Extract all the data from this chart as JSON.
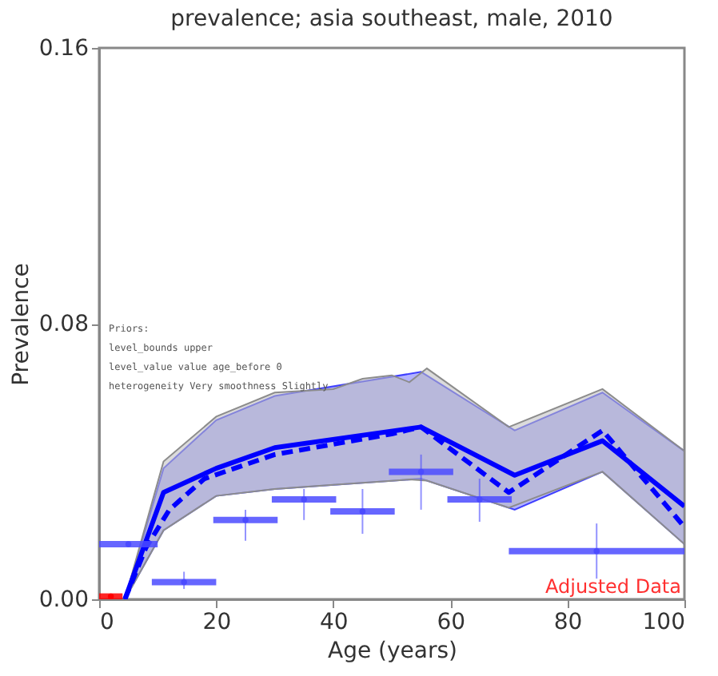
{
  "chart_data": {
    "type": "line",
    "title": "prevalence; asia southeast, male, 2010",
    "xlabel": "Age (years)",
    "ylabel": "Prevalence",
    "xlim": [
      0,
      100
    ],
    "ylim": [
      0,
      0.16
    ],
    "xticks": [
      0,
      20,
      40,
      60,
      80,
      100
    ],
    "yticks": [
      {
        "value": 0,
        "label": "0.00"
      },
      {
        "value": 0.08,
        "label": "0.08"
      },
      0.16
    ],
    "grid": false,
    "annotations": [
      "Priors:",
      "level_bounds upper",
      "level_value value age_before 0",
      "heterogeneity Very smoothness Slightly",
      "Adjusted Data"
    ],
    "series": [
      {
        "type": "area",
        "color": "#bebebe",
        "x": [
          4.4,
          11,
          20,
          30,
          40,
          45,
          50,
          53,
          56,
          70,
          86,
          100
        ],
        "values": [
          0,
          0.04,
          0.053,
          0.06,
          0.061,
          0.064,
          0.065,
          0.063,
          0.067,
          0.05,
          0.061,
          0.043
        ]
      },
      {
        "color": "#0000ff",
        "line_style": "solid",
        "x": [
          4.4,
          11,
          20,
          30,
          55,
          71,
          86,
          100
        ],
        "values": [
          0,
          0.031,
          0.038,
          0.044,
          0.05,
          0.036,
          0.046,
          0.027
        ],
        "lower": [
          0,
          0.02,
          0.03,
          0.032,
          0.035,
          0.026,
          0.037,
          0.016
        ],
        "upper": [
          0,
          0.038,
          0.052,
          0.059,
          0.066,
          0.049,
          0.06,
          0.043
        ]
      },
      {
        "color": "#0000ff",
        "line_style": "dashed",
        "x": [
          4.4,
          8,
          12,
          18,
          30,
          40,
          50,
          55,
          70,
          86,
          100
        ],
        "values": [
          0,
          0.015,
          0.026,
          0.035,
          0.042,
          0.045,
          0.048,
          0.05,
          0.031,
          0.049,
          0.021
        ]
      },
      {
        "type": "scatter",
        "color": "#4b4bff",
        "x": [
          5,
          14.5,
          25,
          35,
          45,
          55,
          65,
          85
        ],
        "values": [
          0.016,
          0.005,
          0.023,
          0.029,
          0.0255,
          0.037,
          0.029,
          0.014
        ],
        "xerrors": [
          5,
          5.5,
          5.5,
          5.5,
          5.5,
          5.5,
          5.5,
          15
        ],
        "errors": [
          null,
          [
            0.003,
            0.008
          ],
          [
            0.017,
            0.026
          ],
          [
            0.023,
            0.032
          ],
          [
            0.019,
            0.032
          ],
          [
            0.026,
            0.042
          ],
          [
            0.0225,
            0.035
          ],
          [
            0.006,
            0.022
          ]
        ]
      },
      {
        "type": "scatter",
        "color": "#ff0000",
        "x": [
          2
        ],
        "values": [
          0.0008
        ],
        "xerrors": [
          2
        ]
      }
    ]
  }
}
